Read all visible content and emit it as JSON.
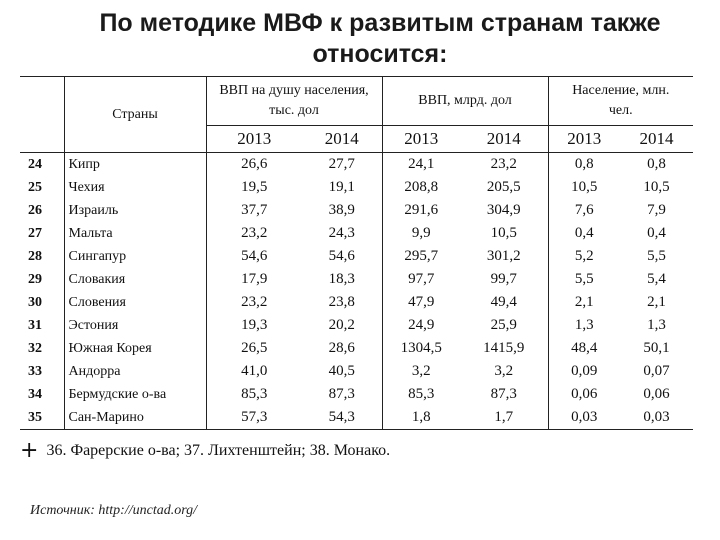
{
  "title_line1": "По методике МВФ к развитым странам также",
  "title_line2": "относится:",
  "table": {
    "countries_header": "Страны",
    "groups": [
      {
        "label_line1": "ВВП на душу населения,",
        "label_line2": "тыс. дол"
      },
      {
        "label_line1": "ВВП, млрд. дол",
        "label_line2": ""
      },
      {
        "label_line1": "Население, млн.",
        "label_line2": "чел."
      }
    ],
    "years": [
      "2013",
      "2014",
      "2013",
      "2014",
      "2013",
      "2014"
    ],
    "rows": [
      {
        "n": "24",
        "country": "Кипр",
        "vals": [
          "26,6",
          "27,7",
          "24,1",
          "23,2",
          "0,8",
          "0,8"
        ]
      },
      {
        "n": "25",
        "country": "Чехия",
        "vals": [
          "19,5",
          "19,1",
          "208,8",
          "205,5",
          "10,5",
          "10,5"
        ]
      },
      {
        "n": "26",
        "country": "Израиль",
        "vals": [
          "37,7",
          "38,9",
          "291,6",
          "304,9",
          "7,6",
          "7,9"
        ]
      },
      {
        "n": "27",
        "country": "Мальта",
        "vals": [
          "23,2",
          "24,3",
          "9,9",
          "10,5",
          "0,4",
          "0,4"
        ]
      },
      {
        "n": "28",
        "country": "Сингапур",
        "vals": [
          "54,6",
          "54,6",
          "295,7",
          "301,2",
          "5,2",
          "5,5"
        ]
      },
      {
        "n": "29",
        "country": "Словакия",
        "vals": [
          "17,9",
          "18,3",
          "97,7",
          "99,7",
          "5,5",
          "5,4"
        ]
      },
      {
        "n": "30",
        "country": "Словения",
        "vals": [
          "23,2",
          "23,8",
          "47,9",
          "49,4",
          "2,1",
          "2,1"
        ]
      },
      {
        "n": "31",
        "country": "Эстония",
        "vals": [
          "19,3",
          "20,2",
          "24,9",
          "25,9",
          "1,3",
          "1,3"
        ]
      },
      {
        "n": "32",
        "country": "Южная Корея",
        "vals": [
          "26,5",
          "28,6",
          "1304,5",
          "1415,9",
          "48,4",
          "50,1"
        ]
      },
      {
        "n": "33",
        "country": "Андорра",
        "vals": [
          "41,0",
          "40,5",
          "3,2",
          "3,2",
          "0,09",
          "0,07"
        ]
      },
      {
        "n": "34",
        "country": "Бермудские о-ва",
        "vals": [
          "85,3",
          "87,3",
          "85,3",
          "87,3",
          "0,06",
          "0,06"
        ]
      },
      {
        "n": "35",
        "country": "Сан-Марино",
        "vals": [
          "57,3",
          "54,3",
          "1,8",
          "1,7",
          "0,03",
          "0,03"
        ]
      }
    ]
  },
  "footnote": {
    "plus": "+",
    "text": "36. Фарерские о-ва;  37. Лихтенштейн;  38. Монако."
  },
  "source": "Источник: http://unctad.org/"
}
